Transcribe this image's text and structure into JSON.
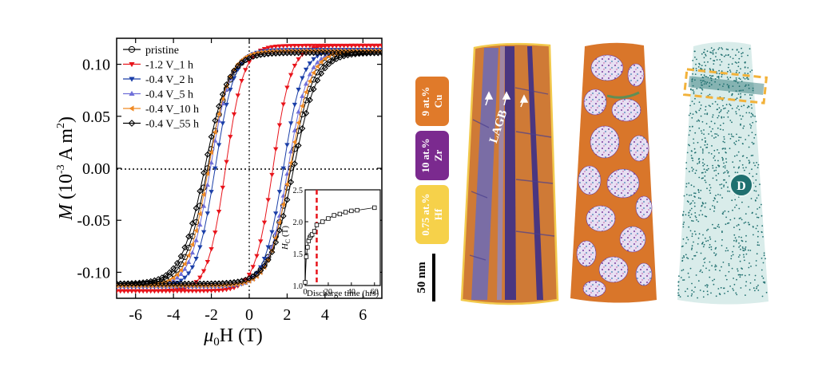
{
  "chart_data": {
    "type": "line",
    "xlabel_main": "μ",
    "xlabel_sub": "0",
    "xlabel_tail": "H (T)",
    "ylabel_main": "M (10",
    "ylabel_sup1": "-3",
    "ylabel_mid": " A m",
    "ylabel_sup2": "2",
    "ylabel_tail": ")",
    "xlim": [
      -7,
      7
    ],
    "ylim": [
      -0.125,
      0.125
    ],
    "xticks": [
      "-6",
      "-4",
      "-2",
      "0",
      "2",
      "4",
      "6"
    ],
    "yticks": [
      "0.10",
      "0.05",
      "0.00",
      "-0.05",
      "-0.10"
    ],
    "legend_position": "top-left",
    "series": [
      {
        "name": "pristine",
        "color": "#000000",
        "marker": "circle",
        "hc": 2.2,
        "ms": 0.112,
        "k": 1.2
      },
      {
        "name": "-1.2 V_1 h",
        "color": "#e8141b",
        "marker": "triangle-down",
        "hc": 1.25,
        "ms": 0.118,
        "k": 0.95
      },
      {
        "name": "-0.4 V_2 h",
        "color": "#1b3fa8",
        "marker": "triangle-down",
        "hc": 1.8,
        "ms": 0.114,
        "k": 1.0
      },
      {
        "name": "-0.4 V_5 h",
        "color": "#6f6fd8",
        "marker": "triangle-up",
        "hc": 2.05,
        "ms": 0.113,
        "k": 1.05
      },
      {
        "name": "-0.4 V_10 h",
        "color": "#f08a24",
        "marker": "triangle-left",
        "hc": 2.15,
        "ms": 0.113,
        "k": 1.1
      },
      {
        "name": "-0.4 V_55 h",
        "color": "#000000",
        "marker": "diamond",
        "hc": 2.35,
        "ms": 0.111,
        "k": 1.25
      }
    ],
    "inset": {
      "xlabel": "Discharge time (hrs)",
      "ylabel_main": "H",
      "ylabel_sub": "C",
      "ylabel_tail": " (T)",
      "xlim": [
        0,
        65
      ],
      "ylim": [
        1.0,
        2.5
      ],
      "xticks": [
        "0",
        "20",
        "40",
        "60"
      ],
      "yticks": [
        "1.0",
        "1.5",
        "2.0",
        "2.5"
      ],
      "marker_line_x": 10,
      "x": [
        0,
        1,
        2,
        3,
        4,
        5,
        6,
        8,
        10,
        15,
        20,
        25,
        30,
        35,
        40,
        45,
        60
      ],
      "y": [
        1.05,
        1.45,
        1.6,
        1.7,
        1.75,
        1.78,
        1.8,
        1.85,
        1.95,
        2.0,
        2.05,
        2.1,
        2.12,
        2.15,
        2.17,
        2.18,
        2.22
      ]
    }
  },
  "panels": {
    "labels": {
      "cu_pct": "9 at.%",
      "cu_el": "Cu",
      "zr_pct": "10 at.%",
      "zr_el": "Zr",
      "hf_pct": "0.75 at.%",
      "hf_el": "Hf"
    },
    "colors": {
      "cu": "#e07a2a",
      "zr": "#7b2a8f",
      "hf": "#f6d14a",
      "d": "#1f6f6f"
    },
    "lagb": "LAGB",
    "d_label": "D",
    "scale_bar": "50 nm"
  }
}
